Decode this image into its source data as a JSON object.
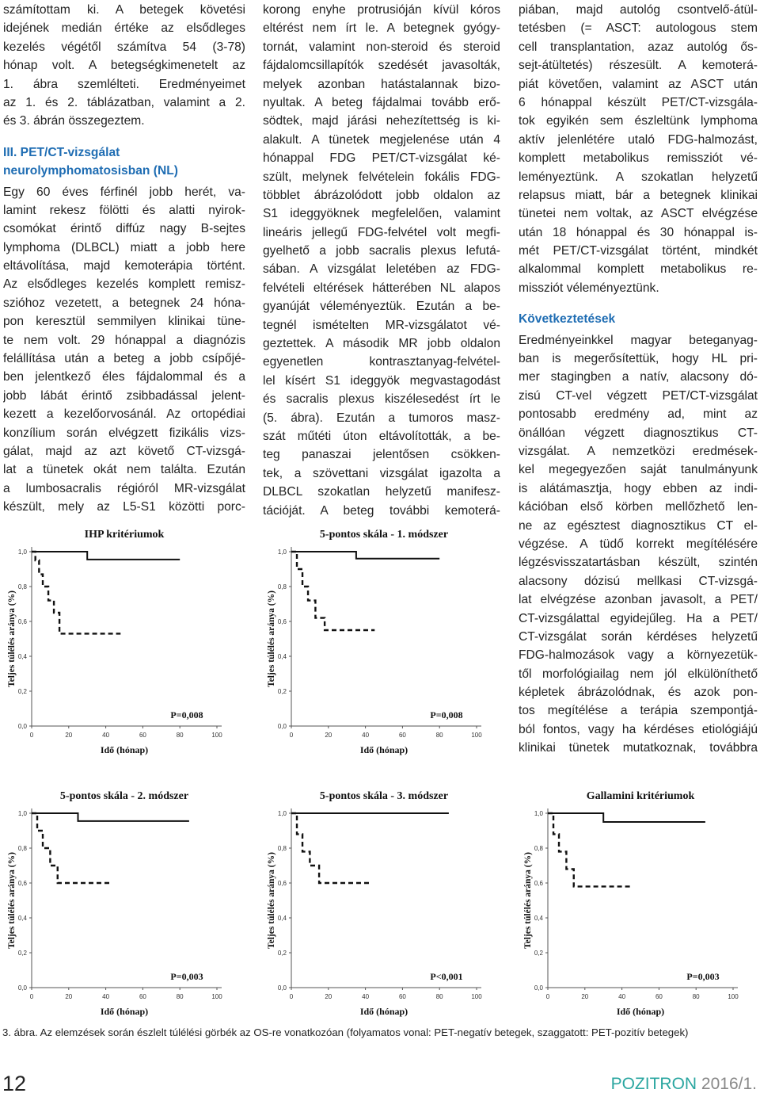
{
  "columns": [
    {
      "blocks": [
        {
          "text": [
            "számítottam ki. A betegek követési",
            "idejének medián értéke az elsődleges",
            "kezelés végétől számítva 54 (3-78)",
            "hónap volt. A betegségkimenetelt az",
            "1. ábra szemlélteti. Eredményeimet",
            "az 1. és 2. táblázatban, valamint a 2.",
            "és 3. ábrán összegeztem."
          ]
        },
        {
          "heading": [
            "III. PET/CT-vizsgálat",
            "neurolymphomatosisban (NL)"
          ]
        },
        {
          "text": [
            "Egy 60 éves férfinél jobb herét, va-",
            "lamint rekesz fölötti és alatti nyirok-",
            "csomókat érintő diffúz nagy B-sejtes",
            "lymphoma (DLBCL) miatt a jobb here",
            "eltávolítása, majd kemoterápia történt.",
            "Az elsődleges kezelés komplett remisz-",
            "szióhoz vezetett, a betegnek 24 hóna-",
            "pon keresztül semmilyen klinikai tüne-",
            "te nem volt. 29 hónappal a diagnózis",
            "felállítása után a beteg a jobb csípőjé-",
            "ben jelentkező éles fájdalommal és a",
            "jobb lábát érintő zsibbadással jelent-",
            "kezett a kezelőorvosánál. Az ortopédiai",
            "konzílium során elvégzett fizikális vizs-",
            "gálat, majd az azt követő CT-vizsgá-",
            "lat a tünetek okát nem találta. Ezután",
            "a lumbosacralis régióról MR-vizsgálat",
            "készült, mely az L5-S1 közötti porc-"
          ]
        }
      ]
    },
    {
      "blocks": [
        {
          "text": [
            "korong enyhe protrusióján kívül kóros",
            "eltérést nem írt le. A betegnek gyógy-",
            "tornát, valamint non-steroid és steroid",
            "fájdalomcsillapítók szedését javasolták,",
            "melyek azonban hatástalannak bizo-",
            "nyultak. A beteg fájdalmai tovább erő-",
            "södtek, majd járási nehezítettség is ki-",
            "alakult. A tünetek megjelenése után 4",
            "hónappal FDG PET/CT-vizsgálat ké-",
            "szült, melynek felvételein fokális FDG-",
            "többlet ábrázolódott jobb oldalon az",
            "S1 ideggyöknek megfelelően, valamint",
            "lineáris jellegű FDG-felvétel volt megfi-",
            "gyelhető a jobb sacralis plexus lefutá-",
            "sában. A vizsgálat leletében az FDG-",
            "felvételi eltérések hátterében NL alapos",
            "gyanúját véleményeztük. Ezután a be-",
            "tegnél ismételten MR-vizsgálatot vé-",
            "geztettek. A második MR jobb oldalon",
            "egyenetlen kontrasztanyag-felvétel-",
            "lel kísért S1 ideggyök megvastagodást",
            "és sacralis plexus kiszélesedést írt le",
            "(5. ábra). Ezután a tumoros masz-",
            "szát műtéti úton eltávolították, a be-",
            "teg panaszai jelentősen csökken-",
            "tek, a szövettani vizsgálat igazolta a",
            "DLBCL szokatlan helyzetű manifesz-",
            "tációját. A beteg további kemoterá-"
          ]
        }
      ]
    },
    {
      "blocks": [
        {
          "text": [
            "piában, majd autológ csontvelő-átül-",
            "tetésben (= ASCT: autologous stem",
            "cell transplantation, azaz autológ ős-",
            "sejt-átültetés) részesült. A kemoterá-",
            "piát követően, valamint az ASCT után",
            "6 hónappal készült PET/CT-vizsgála-",
            "tok egyikén sem észleltünk lymphoma",
            "aktív jelenlétére utaló FDG-halmozást,",
            "komplett metabolikus remissziót vé-",
            "leményeztünk. A szokatlan helyzetű",
            "relapsus miatt, bár a betegnek klinikai",
            "tünetei nem voltak, az ASCT elvégzése",
            "után 18 hónappal és 30 hónappal is-",
            "mét PET/CT-vizsgálat történt, mindkét",
            "alkalommal komplett metabolikus re-",
            "missziót véleményeztünk."
          ]
        },
        {
          "heading": [
            "Következtetések"
          ]
        },
        {
          "text": [
            "Eredményeinkkel magyar beteganyag-",
            "ban is megerősítettük, hogy HL pri-",
            "mer stagingben a natív, alacsony dó-",
            "zisú CT-vel végzett PET/CT-vizsgálat",
            "pontosabb eredmény ad, mint az",
            "önállóan végzett diagnosztikus CT-",
            "vizsgálat. A nemzetközi eredmések-",
            "kel megegyezően saját tanulmányunk",
            "is alátámasztja, hogy ebben az indi-",
            "kációban első körben mellőzhető len-",
            "ne az egésztest diagnosztikus CT el-",
            "végzése. A tüdő korrekt megítélésére",
            "légzésvisszatartásban készült, szintén",
            "alacsony dózisú mellkasi CT-vizsgá-",
            "lat elvégzése azonban javasolt, a PET/",
            "CT-vizsgálattal egyidejűleg. Ha a PET/",
            "CT-vizsgálat során kérdéses helyzetű",
            "FDG-halmozások vagy a környezetük-",
            "től morfológiailag nem jól elkülöníthető",
            "képletek ábrázolódnak, és azok pon-",
            "tos megítélése a terápia szempontjá-",
            "ból fontos, vagy ha kérdéses etiológiájú",
            "klinikai tünetek mutatkoznak, továbbra"
          ]
        }
      ]
    }
  ],
  "chart_data": [
    {
      "type": "step",
      "title": "IHP kritériumok",
      "xlabel": "Idő (hónap)",
      "ylabel": "Teljes túlélés aránya (%)",
      "annotation": "P=0,008",
      "xlim": [
        0,
        100
      ],
      "ylim": [
        0,
        1
      ],
      "xticks": [
        0,
        20,
        40,
        60,
        80,
        100
      ],
      "yticks": [
        {
          "value": 0,
          "label": "0,0"
        },
        {
          "value": 0.2,
          "label": "0,2"
        },
        {
          "value": 0.4,
          "label": "0,4"
        },
        {
          "value": 0.6,
          "label": "0,6"
        },
        {
          "value": 0.8,
          "label": "0,8"
        },
        {
          "value": 1,
          "label": "1,0"
        }
      ],
      "series": [
        {
          "color": "#111111",
          "dashed": false,
          "x": [
            0,
            30,
            80
          ],
          "values": [
            1,
            0.955,
            0.955
          ]
        },
        {
          "color": "#111111",
          "dashed": true,
          "x": [
            0,
            2,
            4,
            6,
            9,
            12,
            15,
            48
          ],
          "values": [
            1,
            0.95,
            0.87,
            0.8,
            0.72,
            0.65,
            0.53,
            0.53
          ]
        }
      ]
    },
    {
      "type": "step",
      "title": "5-pontos skála - 1. módszer",
      "xlabel": "Idő (hónap)",
      "ylabel": "Teljes túlélés aránya (%)",
      "annotation": "P=0,008",
      "xlim": [
        0,
        100
      ],
      "ylim": [
        0,
        1
      ],
      "xticks": [
        0,
        20,
        40,
        60,
        80,
        100
      ],
      "yticks": [
        {
          "value": 0,
          "label": "0,0"
        },
        {
          "value": 0.2,
          "label": "0,2"
        },
        {
          "value": 0.4,
          "label": "0,4"
        },
        {
          "value": 0.6,
          "label": "0,6"
        },
        {
          "value": 0.8,
          "label": "0,8"
        },
        {
          "value": 1,
          "label": "1,0"
        }
      ],
      "series": [
        {
          "color": "#111111",
          "dashed": false,
          "x": [
            0,
            35,
            80
          ],
          "values": [
            1,
            0.96,
            0.96
          ]
        },
        {
          "color": "#111111",
          "dashed": true,
          "x": [
            0,
            3,
            6,
            9,
            13,
            18,
            45
          ],
          "values": [
            1,
            0.9,
            0.8,
            0.72,
            0.62,
            0.55,
            0.55
          ]
        }
      ]
    },
    {
      "type": "step",
      "title": "5-pontos skála - 2. módszer",
      "xlabel": "Idő (hónap)",
      "ylabel": "Teljes túlélés aránya (%)",
      "annotation": "P=0,003",
      "xlim": [
        0,
        100
      ],
      "ylim": [
        0,
        1
      ],
      "xticks": [
        0,
        20,
        40,
        60,
        80,
        100
      ],
      "yticks": [
        {
          "value": 0,
          "label": "0,0"
        },
        {
          "value": 0.2,
          "label": "0,2"
        },
        {
          "value": 0.4,
          "label": "0,4"
        },
        {
          "value": 0.6,
          "label": "0,6"
        },
        {
          "value": 0.8,
          "label": "0,8"
        },
        {
          "value": 1,
          "label": "1,0"
        }
      ],
      "series": [
        {
          "color": "#111111",
          "dashed": false,
          "x": [
            0,
            25,
            85
          ],
          "values": [
            1,
            0.955,
            0.955
          ]
        },
        {
          "color": "#111111",
          "dashed": true,
          "x": [
            0,
            3,
            6,
            10,
            14,
            42
          ],
          "values": [
            1,
            0.9,
            0.8,
            0.7,
            0.6,
            0.6
          ]
        }
      ]
    },
    {
      "type": "step",
      "title": "5-pontos skála - 3. módszer",
      "xlabel": "Idő (hónap)",
      "ylabel": "Teljes túlélés aránya (%)",
      "annotation": "P<0,001",
      "xlim": [
        0,
        100
      ],
      "ylim": [
        0,
        1
      ],
      "xticks": [
        0,
        20,
        40,
        60,
        80,
        100
      ],
      "yticks": [
        {
          "value": 0,
          "label": "0,0"
        },
        {
          "value": 0.2,
          "label": "0,2"
        },
        {
          "value": 0.4,
          "label": "0,4"
        },
        {
          "value": 0.6,
          "label": "0,6"
        },
        {
          "value": 0.8,
          "label": "0,8"
        },
        {
          "value": 1,
          "label": "1,0"
        }
      ],
      "series": [
        {
          "color": "#111111",
          "dashed": false,
          "x": [
            0,
            85
          ],
          "values": [
            1,
            1
          ]
        },
        {
          "color": "#111111",
          "dashed": true,
          "x": [
            0,
            3,
            6,
            10,
            15,
            42
          ],
          "values": [
            1,
            0.88,
            0.78,
            0.7,
            0.6,
            0.6
          ]
        }
      ]
    },
    {
      "type": "step",
      "title": "Gallamini kritériumok",
      "xlabel": "Idő (hónap)",
      "ylabel": "Teljes túlélés aránya (%)",
      "annotation": "P=0,003",
      "xlim": [
        0,
        100
      ],
      "ylim": [
        0,
        1
      ],
      "xticks": [
        0,
        20,
        40,
        60,
        80,
        100
      ],
      "yticks": [
        {
          "value": 0,
          "label": "0,0"
        },
        {
          "value": 0.2,
          "label": "0,2"
        },
        {
          "value": 0.4,
          "label": "0,4"
        },
        {
          "value": 0.6,
          "label": "0,6"
        },
        {
          "value": 0.8,
          "label": "0,8"
        },
        {
          "value": 1,
          "label": "1,0"
        }
      ],
      "series": [
        {
          "color": "#111111",
          "dashed": false,
          "x": [
            0,
            30,
            85
          ],
          "values": [
            1,
            0.95,
            0.95
          ]
        },
        {
          "color": "#111111",
          "dashed": true,
          "x": [
            0,
            3,
            6,
            10,
            14,
            45
          ],
          "values": [
            1,
            0.88,
            0.78,
            0.68,
            0.58,
            0.58
          ]
        }
      ]
    }
  ],
  "caption": "3. ábra. Az elemzések során észlelt túlélési görbék az OS-re vonatkozóan (folyamatos vonal: PET-negatív betegek, szaggatott: PET-pozitív betegek)",
  "footer": {
    "page": "12",
    "publication": "POZITRON",
    "issue": "2016/1."
  }
}
